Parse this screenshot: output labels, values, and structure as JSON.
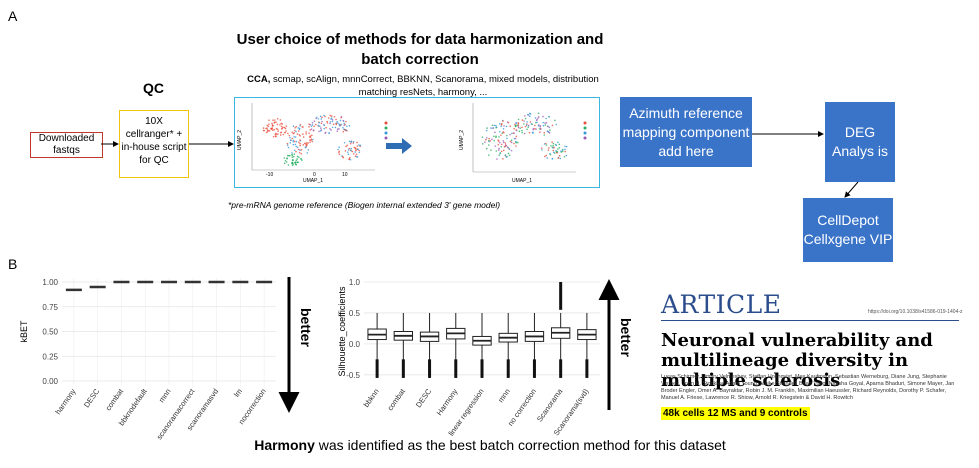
{
  "panel_a_label": "A",
  "panel_b_label": "B",
  "pipeline": {
    "main_title": "User choice of methods for data harmonization and batch correction",
    "methods_bold": "CCA,",
    "methods_rest": " scmap, scAlign, mnnCorrect, BBKNN, Scanorama, mixed models, distribution matching resNets, harmony, ...",
    "qc_title": "QC",
    "fastq_label": "Downloaded fastqs",
    "qc_box_label": "10X cellranger* + in-house script for QC",
    "footnote": "*pre-mRNA genome reference (Biogen internal extended 3' gene model)",
    "azimuth_label": "Azimuth reference mapping component add here",
    "deg_label": "DEG Analys is",
    "celldepot_label": "CellDepot Cellxgene VIP",
    "umap_left": {
      "ylabel": "UMAP_2",
      "xlabel": "UMAP_1",
      "xticks": [
        "-10",
        "0",
        "10"
      ]
    },
    "umap_right": {
      "ylabel": "UMAP_2",
      "xlabel": "UMAP_1"
    },
    "colors": {
      "box_blue": "#3a74c9",
      "frame_cyan": "#3ab7e0",
      "fastq_red": "#c0392b",
      "qc_yellow": "#f1c40f",
      "arrow_blue": "#2e6db4"
    }
  },
  "chart_data": [
    {
      "type": "scatter",
      "name": "kbet",
      "ylabel": "kBET",
      "ylim": [
        0,
        1
      ],
      "yticks": [
        "0.00",
        "0.25",
        "0.50",
        "0.75",
        "1.00"
      ],
      "categories": [
        "harmony",
        "DESC",
        "combat",
        "bbknodefault",
        "mnn",
        "scanoramacorrect",
        "scanoramasvd",
        "lm",
        "nocorrection"
      ],
      "values": [
        0.92,
        0.95,
        1.0,
        1.0,
        1.0,
        1.0,
        1.0,
        1.0,
        1.0
      ],
      "better_label": "better"
    },
    {
      "type": "box",
      "name": "silhouette",
      "ylabel": "Silhouette_coefficients",
      "ylim": [
        -0.6,
        1.0
      ],
      "yticks": [
        "-0.5",
        "0.0",
        "0.5",
        "1.0"
      ],
      "categories": [
        "bbknn",
        "combat",
        "DESC",
        "Harmony",
        "linear regression",
        "mnn",
        "no correction",
        "Scanorama",
        "Scanorama(svd)"
      ],
      "median": [
        0.15,
        0.13,
        0.12,
        0.17,
        0.05,
        0.1,
        0.12,
        0.18,
        0.15
      ],
      "q1": [
        0.07,
        0.06,
        0.04,
        0.08,
        -0.02,
        0.03,
        0.04,
        0.09,
        0.07
      ],
      "q3": [
        0.24,
        0.2,
        0.19,
        0.25,
        0.12,
        0.17,
        0.2,
        0.26,
        0.23
      ],
      "better_label": "better"
    }
  ],
  "article": {
    "header": "ARTICLE",
    "doi": "https://doi.org/10.1038/s41586-019-1404-z",
    "title": "Neuronal vulnerability and multilineage diversity in multiple sclerosis",
    "authors": "Lucas Schirmer, Dmitry Velmeshev, Staffan Holmqvist, Max Kaufmann, Sebastian Werneburg, Diane Jung, Stephanie Vistnes, John H. Stockley, Adam Young, Maike Steindel, Brian Tung, Nitasha Goyal, Aparna Bhaduri, Simone Mayer, Jan Broder Engler, Omer A. Bayraktar, Robin J. M. Franklin, Maximilian Haeussler, Richard Reynolds, Dorothy P. Schafer, Manuel A. Friese, Lawrence R. Shiow, Arnold R. Kriegstein & David H. Rowitch",
    "highlight": "48k cells 12 MS and 9 controls"
  },
  "footer": {
    "bold": "Harmony",
    "rest": " was identified as the best batch correction method for this dataset"
  }
}
